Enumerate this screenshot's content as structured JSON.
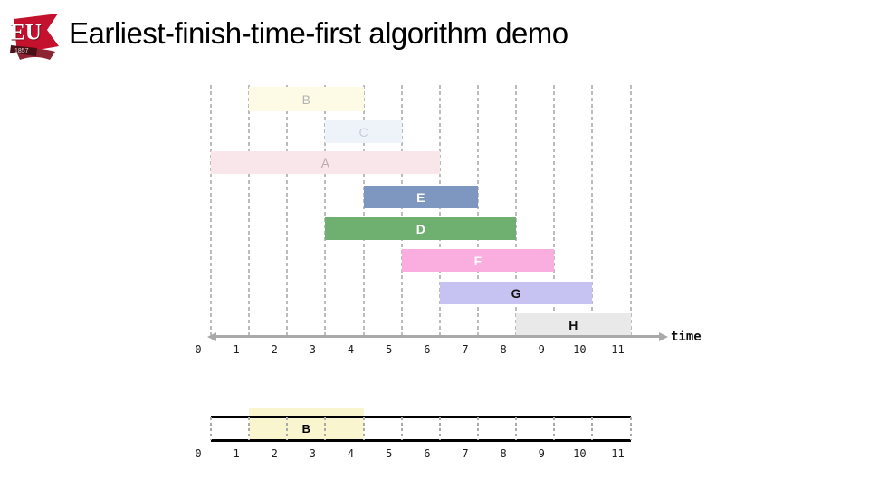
{
  "header": {
    "title": "Earliest-finish-time-first algorithm demo",
    "logo": {
      "initials": "EU",
      "year": "1857",
      "flag_color": "#c4122e",
      "band_color": "#4a1018"
    }
  },
  "chart_data": {
    "type": "gantt",
    "title": "Earliest-finish-time-first algorithm demo",
    "xlabel": "time",
    "axis_range": [
      0,
      11
    ],
    "x_ticks": [
      "0",
      "1",
      "2",
      "3",
      "4",
      "5",
      "6",
      "7",
      "8",
      "9",
      "10",
      "11"
    ],
    "grid": "dashed-vertical",
    "intervals": [
      {
        "label": "B",
        "start": 1,
        "finish": 4,
        "state": "processed",
        "fill": "#FDFAE6",
        "label_color": "#b3b3b3",
        "bold": false
      },
      {
        "label": "C",
        "start": 3,
        "finish": 5,
        "state": "processed",
        "fill": "#EEF2F9",
        "label_color": "#c7ccda",
        "bold": false
      },
      {
        "label": "A",
        "start": 0,
        "finish": 6,
        "state": "processed",
        "fill": "#F8E6EA",
        "label_color": "#c0a9b1",
        "bold": false
      },
      {
        "label": "E",
        "start": 4,
        "finish": 7,
        "state": "pending",
        "fill": "#7D97C1",
        "label_color": "#ffffff",
        "bold": true
      },
      {
        "label": "D",
        "start": 3,
        "finish": 8,
        "state": "pending",
        "fill": "#6FAF70",
        "label_color": "#ffffff",
        "bold": true
      },
      {
        "label": "F",
        "start": 5,
        "finish": 9,
        "state": "pending",
        "fill": "#F9AEDF",
        "label_color": "#ffffff",
        "bold": true
      },
      {
        "label": "G",
        "start": 6,
        "finish": 10,
        "state": "pending",
        "fill": "#C6C3F2",
        "label_color": "#111111",
        "bold": true
      },
      {
        "label": "H",
        "start": 8,
        "finish": 11,
        "state": "pending",
        "fill": "#E9E9E9",
        "label_color": "#111111",
        "bold": true
      }
    ]
  },
  "schedule_strip": {
    "range": [
      0,
      11
    ],
    "ticks": [
      "0",
      "1",
      "2",
      "3",
      "4",
      "5",
      "6",
      "7",
      "8",
      "9",
      "10",
      "11"
    ],
    "selected_intervals": [
      {
        "label": "B",
        "start": 1,
        "finish": 4,
        "fill": "#F8F5CF"
      }
    ]
  },
  "colors": {
    "gridline": "#bcbcbc",
    "axis": "#a9a9a9",
    "strip_border": "#000000",
    "tick_text": "#1c1c1c"
  }
}
